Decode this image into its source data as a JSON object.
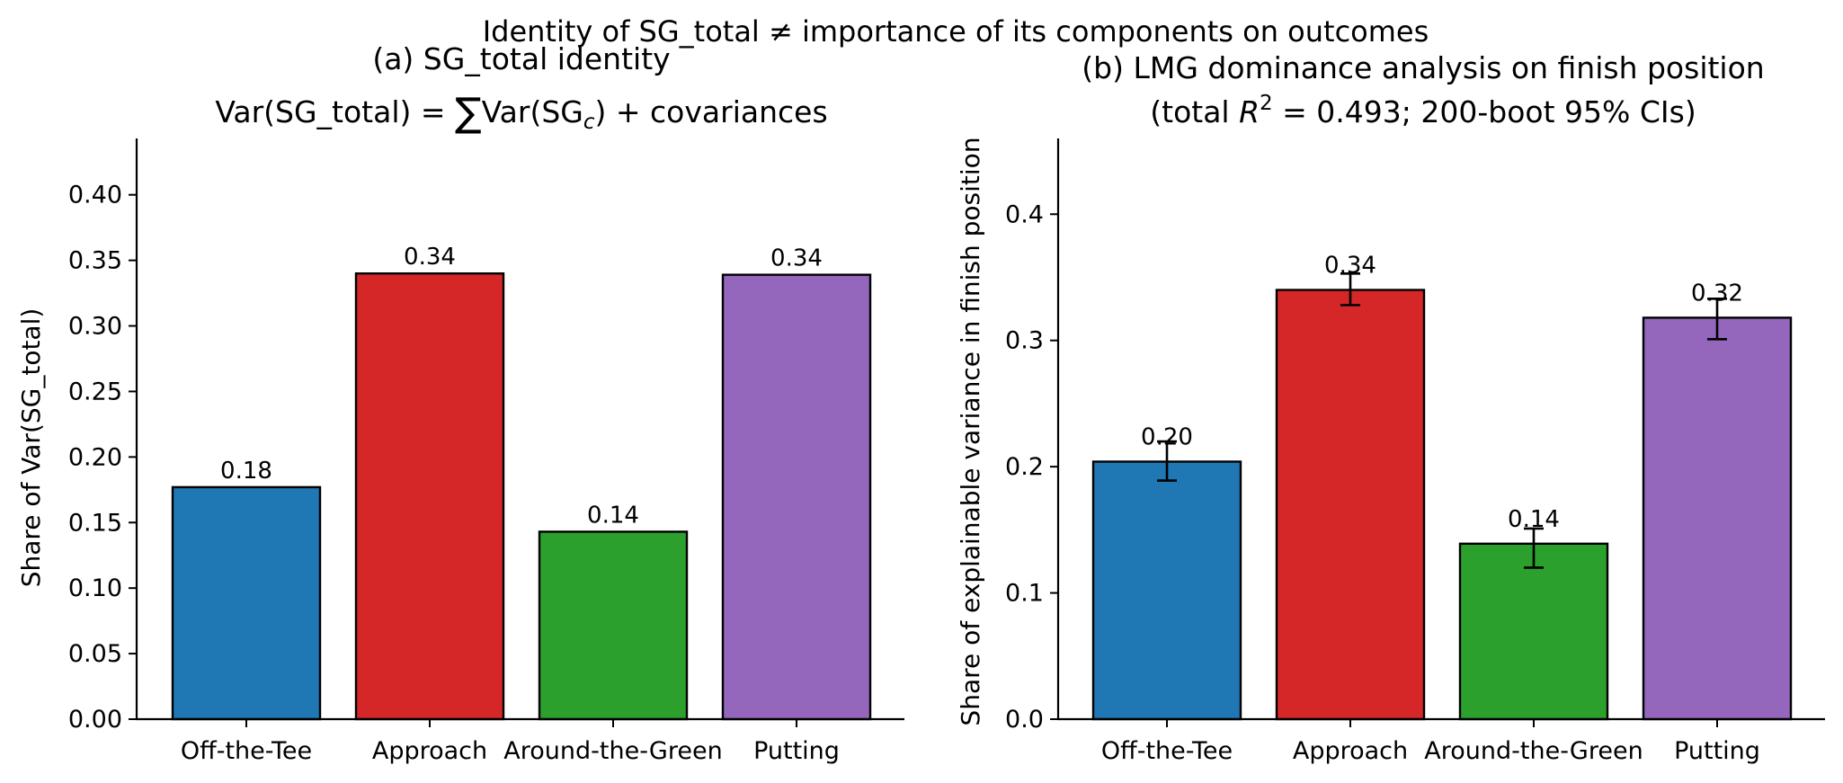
{
  "figure": {
    "suptitle": "Identity of SG_total  ≠  importance of its components on outcomes"
  },
  "chart_data": [
    {
      "type": "bar",
      "title_line1": "(a) SG_total identity",
      "title_line2_parts": {
        "pre": "Var(SG_total)",
        "eq": " = ",
        "sum": "∑",
        "var": "Var(SG",
        "sub": "c",
        "post": ") + covariances"
      },
      "ylabel": "Share of Var(SG_total)",
      "categories": [
        "Off-the-Tee",
        "Approach",
        "Around-the-Green",
        "Putting"
      ],
      "values": [
        0.177,
        0.34,
        0.143,
        0.339
      ],
      "data_labels": [
        "0.18",
        "0.34",
        "0.14",
        "0.34"
      ],
      "colors": [
        "#1f77b4",
        "#d62728",
        "#2ca02c",
        "#9467bd"
      ],
      "ylim": [
        0,
        0.443
      ],
      "yticks": [
        0,
        0.05,
        0.1,
        0.15,
        0.2,
        0.25,
        0.3,
        0.35,
        0.4
      ],
      "ytick_labels": [
        "0.00",
        "0.05",
        "0.10",
        "0.15",
        "0.20",
        "0.25",
        "0.30",
        "0.35",
        "0.40"
      ]
    },
    {
      "type": "bar",
      "title_line1": "(b) LMG dominance analysis on finish position",
      "title_line2_parts": {
        "pre": "(total ",
        "r": "R",
        "sup": "2",
        "post": " = 0.493; 200-boot 95% CIs)"
      },
      "ylabel": "Share of explainable variance in finish position",
      "categories": [
        "Off-the-Tee",
        "Approach",
        "Around-the-Green",
        "Putting"
      ],
      "values": [
        0.204,
        0.34,
        0.139,
        0.318
      ],
      "ci_low": [
        0.189,
        0.328,
        0.12,
        0.301
      ],
      "ci_high": [
        0.22,
        0.353,
        0.151,
        0.333
      ],
      "data_labels": [
        "0.20",
        "0.34",
        "0.14",
        "0.32"
      ],
      "colors": [
        "#1f77b4",
        "#d62728",
        "#2ca02c",
        "#9467bd"
      ],
      "ylim": [
        0,
        0.46
      ],
      "yticks": [
        0,
        0.1,
        0.2,
        0.3,
        0.4
      ],
      "ytick_labels": [
        "0.0",
        "0.1",
        "0.2",
        "0.3",
        "0.4"
      ]
    }
  ]
}
